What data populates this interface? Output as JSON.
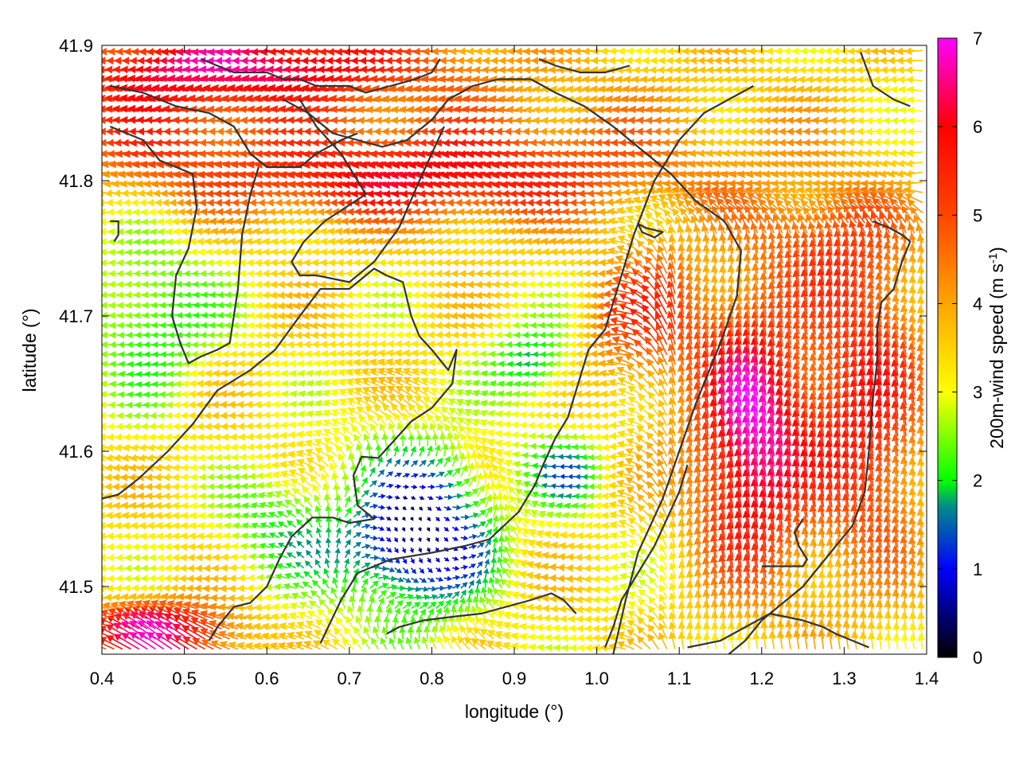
{
  "chart_data": {
    "type": "vector-field",
    "title": "",
    "xlabel": "longitude (°)",
    "ylabel": "latitude (°)",
    "xlim": [
      0.4,
      1.4
    ],
    "ylim": [
      41.45,
      41.9
    ],
    "xticks": [
      "0.4",
      "0.5",
      "0.6",
      "0.7",
      "0.8",
      "0.9",
      "1.0",
      "1.1",
      "1.2",
      "1.3",
      "1.4"
    ],
    "yticks": [
      "41.5",
      "41.6",
      "41.7",
      "41.8",
      "41.9"
    ],
    "colorbar": {
      "label": "200m-wind speed (m s",
      "label_sup": "-1",
      "label_end": ")",
      "range": [
        0,
        7
      ],
      "ticks": [
        "0",
        "1",
        "2",
        "3",
        "4",
        "5",
        "6",
        "7"
      ],
      "colormap": [
        {
          "value": 0,
          "color": "#000000"
        },
        {
          "value": 1,
          "color": "#0000ff"
        },
        {
          "value": 1.7,
          "color": "#008b8b"
        },
        {
          "value": 2,
          "color": "#00ff00"
        },
        {
          "value": 3,
          "color": "#ffff00"
        },
        {
          "value": 4,
          "color": "#ffa500"
        },
        {
          "value": 5,
          "color": "#ff4500"
        },
        {
          "value": 6,
          "color": "#ff0000"
        },
        {
          "value": 7,
          "color": "#ff00ff"
        }
      ]
    },
    "wind_field": {
      "grid_spacing_deg": 0.01,
      "note_regions": [
        {
          "lon": 0.85,
          "lat": 41.875,
          "speed": 6.5,
          "dir": "west"
        },
        {
          "lon": 0.75,
          "lat": 41.79,
          "speed": 5.8,
          "dir": "west"
        },
        {
          "lon": 1.0,
          "lat": 41.78,
          "speed": 4.2,
          "dir": "west-southwest"
        },
        {
          "lon": 0.48,
          "lat": 41.7,
          "speed": 2.0,
          "dir": "west"
        },
        {
          "lon": 0.6,
          "lat": 41.63,
          "speed": 3.3,
          "dir": "west"
        },
        {
          "lon": 0.78,
          "lat": 41.54,
          "speed": 0.6,
          "dir": "south"
        },
        {
          "lon": 0.85,
          "lat": 41.66,
          "speed": 2.2,
          "dir": "west"
        },
        {
          "lon": 1.19,
          "lat": 41.61,
          "speed": 6.9,
          "dir": "north"
        },
        {
          "lon": 1.33,
          "lat": 41.62,
          "speed": 5.8,
          "dir": "north"
        },
        {
          "lon": 1.08,
          "lat": 41.7,
          "speed": 5.0,
          "dir": "north"
        },
        {
          "lon": 0.49,
          "lat": 41.47,
          "speed": 6.8,
          "dir": "northwest"
        }
      ]
    },
    "contours": [
      [
        [
          0.4,
          41.565
        ],
        [
          0.42,
          41.568
        ],
        [
          0.445,
          41.58
        ],
        [
          0.48,
          41.6
        ],
        [
          0.51,
          41.62
        ],
        [
          0.54,
          41.645
        ],
        [
          0.58,
          41.66
        ],
        [
          0.61,
          41.675
        ],
        [
          0.64,
          41.7
        ],
        [
          0.665,
          41.72
        ],
        [
          0.7,
          41.72
        ],
        [
          0.73,
          41.735
        ],
        [
          0.745,
          41.73
        ],
        [
          0.765,
          41.725
        ],
        [
          0.775,
          41.7
        ],
        [
          0.785,
          41.685
        ],
        [
          0.8,
          41.675
        ],
        [
          0.82,
          41.66
        ],
        [
          0.83,
          41.675
        ],
        [
          0.825,
          41.65
        ],
        [
          0.8,
          41.632
        ],
        [
          0.775,
          41.622
        ],
        [
          0.75,
          41.605
        ],
        [
          0.735,
          41.595
        ],
        [
          0.715,
          41.596
        ],
        [
          0.705,
          41.582
        ],
        [
          0.71,
          41.56
        ],
        [
          0.73,
          41.55
        ],
        [
          0.7,
          41.547
        ],
        [
          0.68,
          41.551
        ],
        [
          0.655,
          41.551
        ],
        [
          0.63,
          41.537
        ],
        [
          0.615,
          41.52
        ],
        [
          0.6,
          41.5
        ],
        [
          0.58,
          41.488
        ],
        [
          0.56,
          41.485
        ],
        [
          0.54,
          41.47
        ],
        [
          0.53,
          41.46
        ]
      ],
      [
        [
          0.665,
          41.458
        ],
        [
          0.69,
          41.49
        ],
        [
          0.71,
          41.51
        ],
        [
          0.75,
          41.52
        ],
        [
          0.8,
          41.525
        ],
        [
          0.84,
          41.53
        ],
        [
          0.87,
          41.535
        ],
        [
          0.905,
          41.555
        ],
        [
          0.925,
          41.575
        ],
        [
          0.935,
          41.59
        ],
        [
          0.95,
          41.61
        ],
        [
          0.965,
          41.625
        ],
        [
          0.98,
          41.655
        ],
        [
          0.99,
          41.675
        ],
        [
          1.01,
          41.69
        ],
        [
          1.02,
          41.71
        ],
        [
          1.03,
          41.73
        ],
        [
          1.045,
          41.76
        ],
        [
          1.07,
          41.8
        ],
        [
          1.1,
          41.83
        ],
        [
          1.13,
          41.85
        ],
        [
          1.16,
          41.86
        ],
        [
          1.19,
          41.87
        ]
      ],
      [
        [
          0.62,
          41.86
        ],
        [
          0.65,
          41.85
        ],
        [
          0.68,
          41.835
        ],
        [
          0.71,
          41.83
        ],
        [
          0.74,
          41.825
        ],
        [
          0.77,
          41.83
        ],
        [
          0.8,
          41.845
        ],
        [
          0.82,
          41.86
        ],
        [
          0.85,
          41.87
        ],
        [
          0.88,
          41.875
        ],
        [
          0.92,
          41.875
        ],
        [
          0.95,
          41.865
        ],
        [
          0.985,
          41.855
        ],
        [
          1.02,
          41.84
        ],
        [
          1.06,
          41.82
        ],
        [
          1.09,
          41.805
        ],
        [
          1.12,
          41.785
        ],
        [
          1.155,
          41.77
        ],
        [
          1.175,
          41.748
        ],
        [
          1.17,
          41.715
        ],
        [
          1.15,
          41.68
        ],
        [
          1.12,
          41.635
        ],
        [
          1.1,
          41.6
        ],
        [
          1.08,
          41.565
        ],
        [
          1.05,
          41.525
        ],
        [
          1.035,
          41.49
        ],
        [
          1.02,
          41.45
        ]
      ],
      [
        [
          0.64,
          41.86
        ],
        [
          0.66,
          41.84
        ],
        [
          0.69,
          41.82
        ],
        [
          0.71,
          41.8
        ],
        [
          0.72,
          41.79
        ],
        [
          0.67,
          41.77
        ],
        [
          0.645,
          41.755
        ],
        [
          0.63,
          41.74
        ],
        [
          0.64,
          41.73
        ],
        [
          0.66,
          41.73
        ],
        [
          0.7,
          41.725
        ],
        [
          0.73,
          41.74
        ],
        [
          0.76,
          41.765
        ],
        [
          0.785,
          41.8
        ],
        [
          0.8,
          41.82
        ],
        [
          0.815,
          41.84
        ]
      ],
      [
        [
          1.05,
          41.768
        ],
        [
          1.06,
          41.765
        ],
        [
          1.08,
          41.762
        ],
        [
          1.07,
          41.758
        ],
        [
          1.055,
          41.762
        ],
        [
          1.05,
          41.768
        ]
      ],
      [
        [
          0.41,
          41.84
        ],
        [
          0.43,
          41.835
        ],
        [
          0.45,
          41.83
        ],
        [
          0.47,
          41.815
        ],
        [
          0.49,
          41.81
        ],
        [
          0.51,
          41.805
        ],
        [
          0.515,
          41.78
        ],
        [
          0.505,
          41.75
        ],
        [
          0.49,
          41.73
        ],
        [
          0.485,
          41.7
        ],
        [
          0.495,
          41.68
        ],
        [
          0.505,
          41.665
        ],
        [
          0.52,
          41.67
        ],
        [
          0.54,
          41.675
        ],
        [
          0.555,
          41.68
        ],
        [
          0.565,
          41.72
        ],
        [
          0.57,
          41.76
        ],
        [
          0.58,
          41.79
        ],
        [
          0.59,
          41.81
        ]
      ],
      [
        [
          0.41,
          41.77
        ],
        [
          0.42,
          41.77
        ],
        [
          0.42,
          41.76
        ],
        [
          0.415,
          41.755
        ]
      ],
      [
        [
          1.335,
          41.77
        ],
        [
          1.355,
          41.765
        ],
        [
          1.37,
          41.76
        ],
        [
          1.38,
          41.755
        ],
        [
          1.37,
          41.74
        ],
        [
          1.36,
          41.72
        ],
        [
          1.345,
          41.71
        ],
        [
          1.34,
          41.69
        ],
        [
          1.34,
          41.665
        ],
        [
          1.335,
          41.64
        ],
        [
          1.33,
          41.6
        ],
        [
          1.325,
          41.57
        ],
        [
          1.31,
          41.545
        ],
        [
          1.29,
          41.53
        ],
        [
          1.27,
          41.515
        ],
        [
          1.25,
          41.5
        ],
        [
          1.23,
          41.49
        ],
        [
          1.2,
          41.475
        ],
        [
          1.18,
          41.46
        ],
        [
          1.16,
          41.45
        ]
      ],
      [
        [
          1.32,
          41.895
        ],
        [
          1.335,
          41.87
        ],
        [
          1.36,
          41.86
        ],
        [
          1.38,
          41.855
        ]
      ],
      [
        [
          0.41,
          41.87
        ],
        [
          0.45,
          41.865
        ],
        [
          0.49,
          41.855
        ],
        [
          0.53,
          41.85
        ],
        [
          0.56,
          41.84
        ],
        [
          0.58,
          41.82
        ],
        [
          0.6,
          41.81
        ],
        [
          0.62,
          41.81
        ],
        [
          0.64,
          41.81
        ],
        [
          0.66,
          41.82
        ],
        [
          0.69,
          41.83
        ],
        [
          0.71,
          41.835
        ]
      ],
      [
        [
          0.52,
          41.89
        ],
        [
          0.54,
          41.885
        ],
        [
          0.56,
          41.88
        ],
        [
          0.6,
          41.88
        ],
        [
          0.62,
          41.875
        ],
        [
          0.64,
          41.875
        ],
        [
          0.66,
          41.87
        ],
        [
          0.7,
          41.87
        ],
        [
          0.72,
          41.865
        ],
        [
          0.75,
          41.87
        ],
        [
          0.78,
          41.875
        ],
        [
          0.8,
          41.88
        ],
        [
          0.81,
          41.89
        ]
      ],
      [
        [
          0.745,
          41.465
        ],
        [
          0.76,
          41.47
        ],
        [
          0.79,
          41.475
        ],
        [
          0.83,
          41.478
        ],
        [
          0.86,
          41.48
        ],
        [
          0.89,
          41.485
        ],
        [
          0.92,
          41.49
        ],
        [
          0.945,
          41.495
        ],
        [
          0.96,
          41.49
        ],
        [
          0.975,
          41.48
        ]
      ],
      [
        [
          1.11,
          41.455
        ],
        [
          1.15,
          41.46
        ],
        [
          1.18,
          41.47
        ],
        [
          1.21,
          41.48
        ],
        [
          1.25,
          41.475
        ],
        [
          1.275,
          41.47
        ],
        [
          1.29,
          41.465
        ],
        [
          1.31,
          41.46
        ],
        [
          1.33,
          41.455
        ]
      ],
      [
        [
          1.2,
          41.515
        ],
        [
          1.22,
          41.515
        ],
        [
          1.25,
          41.515
        ],
        [
          1.255,
          41.52
        ],
        [
          1.245,
          41.53
        ],
        [
          1.24,
          41.54
        ],
        [
          1.25,
          41.55
        ]
      ],
      [
        [
          1.01,
          41.455
        ],
        [
          1.02,
          41.47
        ],
        [
          1.03,
          41.49
        ],
        [
          1.05,
          41.51
        ],
        [
          1.07,
          41.53
        ],
        [
          1.085,
          41.55
        ],
        [
          1.1,
          41.57
        ],
        [
          1.11,
          41.59
        ]
      ],
      [
        [
          0.93,
          41.89
        ],
        [
          0.95,
          41.885
        ],
        [
          0.98,
          41.88
        ],
        [
          1.01,
          41.88
        ],
        [
          1.04,
          41.885
        ]
      ]
    ]
  }
}
